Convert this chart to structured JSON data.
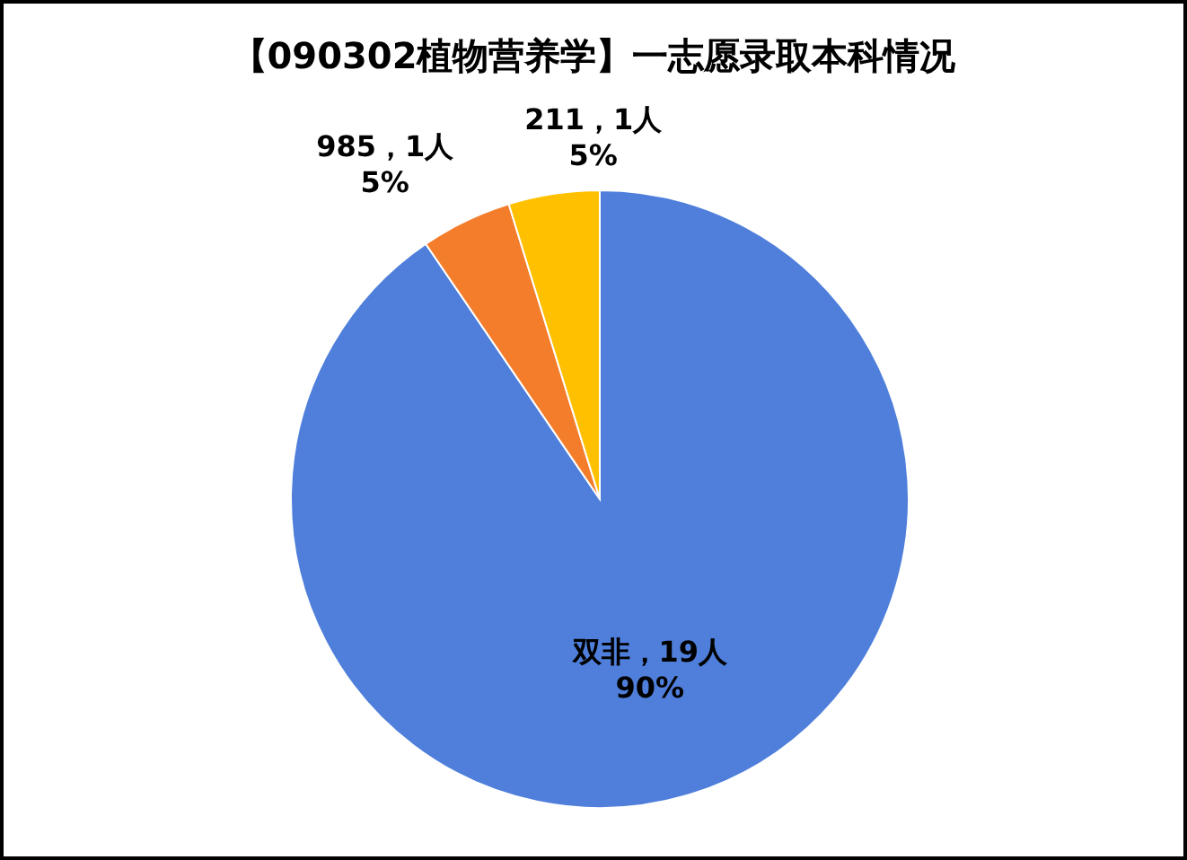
{
  "chart_data": {
    "type": "pie",
    "title": "【090302植物营养学】一志愿录取本科情况",
    "categories": [
      "双非",
      "985",
      "211"
    ],
    "values": [
      19,
      1,
      1
    ],
    "value_labels": [
      "，19人\n90%",
      "，1人\n5%",
      "，1人\n5%"
    ],
    "colors": [
      "#4f7fdb",
      "#f47d2c",
      "#ffc000"
    ]
  }
}
